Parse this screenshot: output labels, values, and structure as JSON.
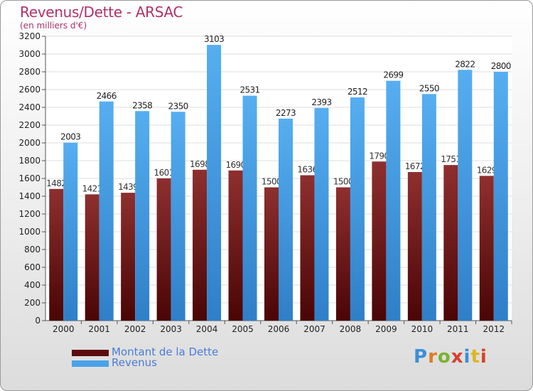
{
  "title": "Revenus/Dette - ARSAC",
  "subtitle": "(en milliers d'€)",
  "colors": {
    "dette": "#7a1d1d",
    "revenus": "#4aa3e8",
    "title": "#b0306a",
    "legend_text": "#4b7bd9"
  },
  "legend": [
    {
      "label": "Montant de la Dette",
      "color": "#5c0c0c"
    },
    {
      "label": "Revenus",
      "color": "#4aa3e8"
    }
  ],
  "logo": {
    "text": "Proxiti"
  },
  "chart_data": {
    "type": "bar",
    "categories": [
      "2000",
      "2001",
      "2002",
      "2003",
      "2004",
      "2005",
      "2006",
      "2007",
      "2008",
      "2009",
      "2010",
      "2011",
      "2012"
    ],
    "series": [
      {
        "name": "Montant de la Dette",
        "values": [
          1482,
          1421,
          1439,
          1601,
          1698,
          1690,
          1500,
          1636,
          1500,
          1790,
          1672,
          1751,
          1629
        ],
        "labels": [
          "1482",
          "1421",
          "1439",
          "1601",
          "1698",
          "1690",
          "1500",
          "1636",
          "1500",
          "1790",
          "1672",
          "1751",
          "1629"
        ]
      },
      {
        "name": "Revenus",
        "values": [
          2003,
          2466,
          2358,
          2350,
          3103,
          2531,
          2273,
          2393,
          2512,
          2699,
          2550,
          2822,
          2800
        ],
        "labels": [
          "2003",
          "2466",
          "2358",
          "2350",
          "3103",
          "2531",
          "2273",
          "2393",
          "2512",
          "2699",
          "2550",
          "2822",
          "2800"
        ]
      }
    ],
    "yticks": [
      0,
      200,
      400,
      600,
      800,
      1000,
      1200,
      1400,
      1600,
      1800,
      2000,
      2200,
      2400,
      2600,
      2800,
      3000,
      3200
    ],
    "ylim": [
      0,
      3200
    ],
    "grid": true,
    "legend_position": "bottom-left"
  }
}
